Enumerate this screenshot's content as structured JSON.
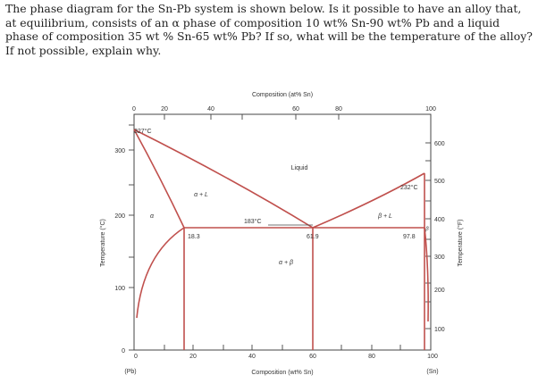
{
  "question": {
    "text": "The phase diagram for the Sn-Pb system is shown below. Is it possible to have an alloy that, at equilibrium, consists of an α phase of composition 10 wt% Sn-90 wt% Pb and a liquid phase of composition 35 wt % Sn-65 wt% Pb? If so, what will be the temperature of the alloy? If not possible, explain why."
  },
  "diagram": {
    "top_axis_label": "Composition (at% Sn)",
    "bottom_axis_label": "Composition (wt% Sn)",
    "left_axis_label": "Temperature (°C)",
    "right_axis_label": "Temperature (°F)",
    "top_ticks": [
      "0",
      "20",
      "40",
      "60",
      "80",
      "100"
    ],
    "bottom_ticks": [
      "0",
      "20",
      "40",
      "60",
      "80",
      "100"
    ],
    "left_ticks": [
      "0",
      "100",
      "200",
      "300"
    ],
    "right_ticks": [
      "100",
      "200",
      "300",
      "400",
      "500",
      "600"
    ],
    "left_end_label": "(Pb)",
    "right_end_label": "(Sn)",
    "phase_labels": {
      "liquid": "Liquid",
      "alpha_l": "α + L",
      "beta_l": "β + L",
      "alpha_beta": "α + β",
      "alpha": "α",
      "beta": "β"
    },
    "annotations": {
      "pb_melting": "327°C",
      "sn_melting": "232°C",
      "eutectic_temp": "183°C",
      "alpha_limit": "18.3",
      "eutectic_comp": "61.9",
      "beta_limit": "97.8"
    },
    "colors": {
      "phase_boundary": "#c0504d",
      "axis": "#444444",
      "text": "#222222"
    }
  }
}
